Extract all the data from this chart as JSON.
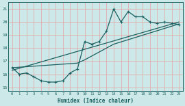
{
  "title": "",
  "xlabel": "Humidex (Indice chaleur)",
  "bg_color": "#cce8e8",
  "line_color": "#1a6060",
  "grid_color": "#b0d8d8",
  "xlim": [
    -0.5,
    23.5
  ],
  "ylim": [
    14.7,
    21.5
  ],
  "yticks": [
    15,
    16,
    17,
    18,
    19,
    20,
    21
  ],
  "xticks": [
    0,
    1,
    2,
    3,
    4,
    5,
    6,
    7,
    8,
    9,
    10,
    11,
    12,
    13,
    14,
    15,
    16,
    17,
    18,
    19,
    20,
    21,
    22,
    23
  ],
  "line1_x": [
    0,
    1,
    2,
    3,
    4,
    5,
    6,
    7,
    8,
    9,
    10,
    11,
    12,
    13,
    14,
    15,
    16,
    17,
    18,
    19,
    20,
    21,
    22,
    23
  ],
  "line1_y": [
    16.5,
    16.0,
    16.1,
    15.8,
    15.5,
    15.4,
    15.4,
    15.5,
    16.1,
    16.4,
    18.5,
    18.3,
    18.5,
    19.3,
    21.0,
    20.0,
    20.8,
    20.4,
    20.4,
    20.0,
    19.9,
    20.0,
    19.9,
    19.8
  ],
  "line2_x": [
    0,
    23
  ],
  "line2_y": [
    16.3,
    20.0
  ],
  "line3_x": [
    0,
    9,
    10,
    14,
    23
  ],
  "line3_y": [
    16.5,
    16.85,
    17.1,
    18.3,
    19.85
  ]
}
